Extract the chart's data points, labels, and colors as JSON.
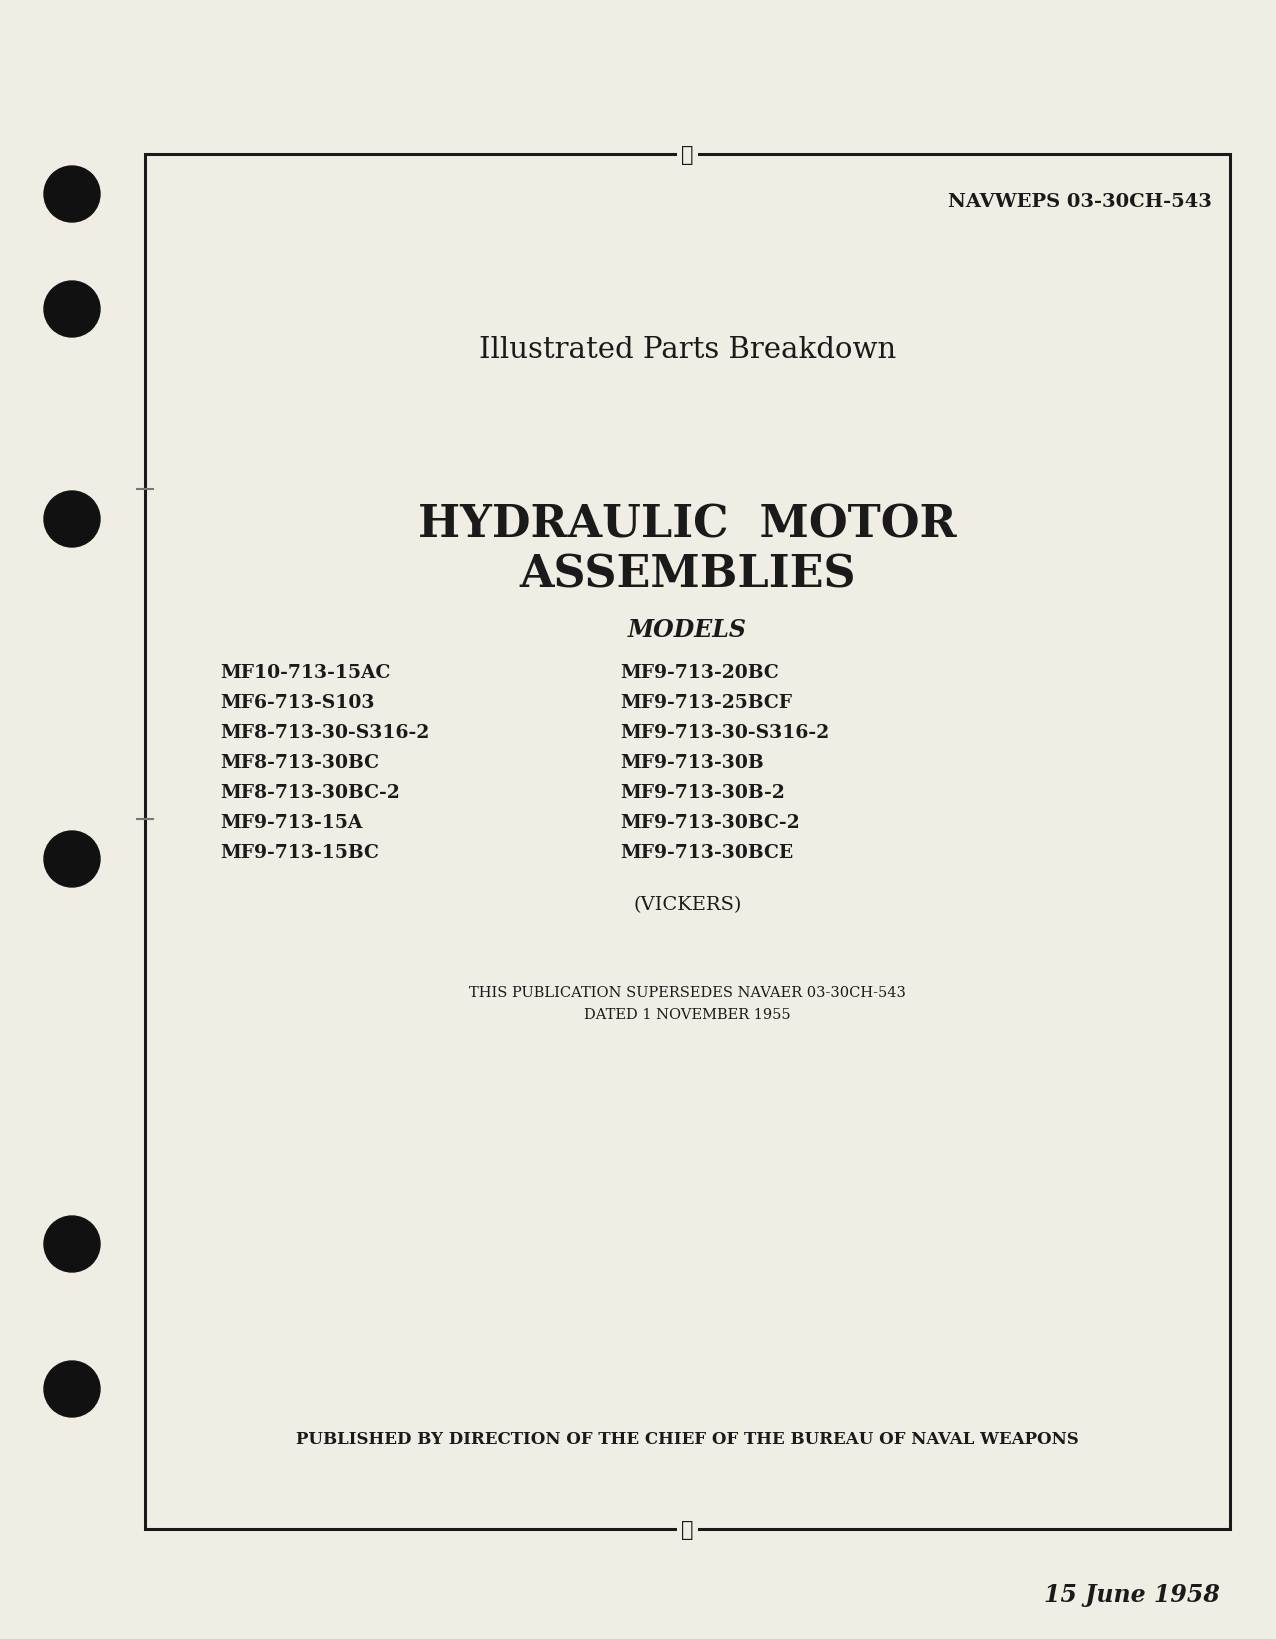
{
  "bg_color": "#f0ede4",
  "border_color": "#1a1a1a",
  "text_color": "#1a1a1a",
  "navweps": "NAVWEPS 03-30CH-543",
  "subtitle": "Illustrated Parts Breakdown",
  "main_title_line1": "HYDRAULIC  MOTOR",
  "main_title_line2": "ASSEMBLIES",
  "models_label": "MODELS",
  "models_left": [
    "MF10-713-15AC",
    "MF6-713-S103",
    "MF8-713-30-S316-2",
    "MF8-713-30BC",
    "MF8-713-30BC-2",
    "MF9-713-15A",
    "MF9-713-15BC"
  ],
  "models_right": [
    "MF9-713-20BC",
    "MF9-713-25BCF",
    "MF9-713-30-S316-2",
    "MF9-713-30B",
    "MF9-713-30B-2",
    "MF9-713-30BC-2",
    "MF9-713-30BCE"
  ],
  "vickers": "(VICKERS)",
  "supersedes_line1": "THIS PUBLICATION SUPERSEDES NAVAER 03-30CH-543",
  "supersedes_line2": "DATED 1 NOVEMBER 1955",
  "publisher": "PUBLISHED BY DIRECTION OF THE CHIEF OF THE BUREAU OF NAVAL WEAPONS",
  "date": "15 June 1958"
}
